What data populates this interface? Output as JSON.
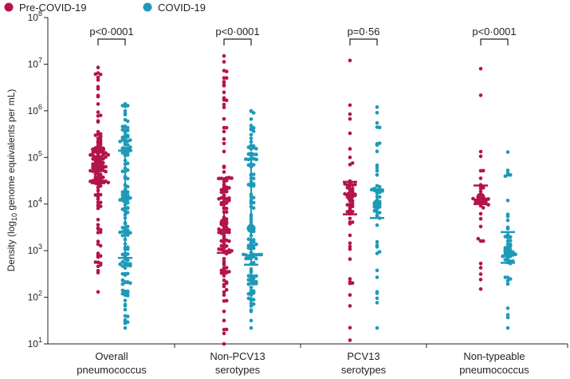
{
  "chart_data": {
    "type": "scatter",
    "subtype": "dot-plot-log",
    "categories": [
      "Overall pneumococcus",
      "Non-PCV13 serotypes",
      "PCV13 serotypes",
      "Non-typeable pneumococcus"
    ],
    "category_lines": [
      [
        "Overall",
        "pneumococcus"
      ],
      [
        "Non-PCV13",
        "serotypes"
      ],
      [
        "PCV13",
        "serotypes"
      ],
      [
        "Non-typeable",
        "pneumococcus"
      ]
    ],
    "ylabel": {
      "pre": "Density (log",
      "sub": "10",
      "post": " genome equivalents per mL)"
    },
    "yscale": "log",
    "ylim": [
      10,
      100000000
    ],
    "yticks": [
      {
        "value": 10,
        "base": "10",
        "exp": "1"
      },
      {
        "value": 100,
        "base": "10",
        "exp": "2"
      },
      {
        "value": 1000,
        "base": "10",
        "exp": "3"
      },
      {
        "value": 10000,
        "base": "10",
        "exp": "4"
      },
      {
        "value": 100000,
        "base": "10",
        "exp": "5"
      },
      {
        "value": 1000000,
        "base": "10",
        "exp": "6"
      },
      {
        "value": 10000000,
        "base": "10",
        "exp": "7"
      },
      {
        "value": 100000000,
        "base": "10",
        "exp": "8"
      }
    ],
    "legend": {
      "position": "top-left"
    },
    "series": [
      {
        "name": "Pre-COVID-19",
        "color": "#b5134b"
      },
      {
        "name": "COVID-19",
        "color": "#1e9ab8"
      }
    ],
    "annotations": [
      "p<0·0001",
      "p<0·0001",
      "p=0·56",
      "p<0·0001"
    ],
    "groups": [
      {
        "category": "Overall pneumococcus",
        "pre": {
          "min": 130,
          "max": 8500000,
          "q1": 28000,
          "median": 60000,
          "q3": 150000,
          "count": 140
        },
        "covid": {
          "min": 22,
          "max": 1400000,
          "q1": 700,
          "median": 13000,
          "q3": 140000,
          "count": 150
        }
      },
      {
        "category": "Non-PCV13 serotypes",
        "pre": {
          "min": 10,
          "max": 15000000,
          "q1": 900,
          "median": 4000,
          "q3": 35000,
          "count": 130
        },
        "covid": {
          "min": 22,
          "max": 1000000,
          "q1": 500,
          "median": 3000,
          "q3": 90000,
          "count": 130
        }
      },
      {
        "category": "PCV13 serotypes",
        "pre": {
          "min": 12,
          "max": 12000000,
          "q1": 6000,
          "median": 15000,
          "q3": 30000,
          "count": 60
        },
        "covid": {
          "min": 22,
          "max": 1200000,
          "q1": 5000,
          "median": 10000,
          "q3": 20000,
          "count": 55
        }
      },
      {
        "category": "Non-typeable pneumococcus",
        "pre": {
          "min": 150,
          "max": 8000000,
          "q1": 10000,
          "median": 14000,
          "q3": 25000,
          "count": 45
        },
        "covid": {
          "min": 22,
          "max": 130000,
          "q1": 550,
          "median": 1000,
          "q3": 2500,
          "count": 50
        }
      }
    ]
  }
}
